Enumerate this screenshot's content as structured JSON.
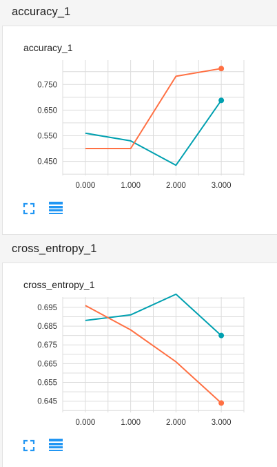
{
  "sections": [
    {
      "header_title": "accuracy_1",
      "card_title": "accuracy_1",
      "fit_icon": "fit-domain-icon",
      "data_icon": "toggle-data-table-icon"
    },
    {
      "header_title": "cross_entropy_1",
      "card_title": "cross_entropy_1",
      "fit_icon": "fit-domain-icon",
      "data_icon": "toggle-data-table-icon"
    }
  ],
  "colors": {
    "series_a": "#00a0b0",
    "series_b": "#ff7043",
    "grid": "#dcdcdc",
    "icon": "#2196f3"
  },
  "chart_data": [
    {
      "type": "line",
      "title": "accuracy_1",
      "x": [
        0,
        1,
        2,
        3
      ],
      "x_ticks": [
        "0.000",
        "1.000",
        "2.000",
        "3.000"
      ],
      "xlim": [
        -0.5,
        3.5
      ],
      "y_ticks": [
        "0.750",
        "0.650",
        "0.550",
        "0.450"
      ],
      "y_tick_values": [
        0.75,
        0.65,
        0.55,
        0.45
      ],
      "ylim": [
        0.395,
        0.845
      ],
      "grid": true,
      "series": [
        {
          "color": "#00a0b0",
          "values": [
            0.56,
            0.53,
            0.435,
            0.688
          ]
        },
        {
          "color": "#ff7043",
          "values": [
            0.5,
            0.5,
            0.782,
            0.812
          ]
        }
      ]
    },
    {
      "type": "line",
      "title": "cross_entropy_1",
      "x": [
        0,
        1,
        2,
        3
      ],
      "x_ticks": [
        "0.000",
        "1.000",
        "2.000",
        "3.000"
      ],
      "xlim": [
        -0.5,
        3.5
      ],
      "y_ticks": [
        "0.695",
        "0.685",
        "0.675",
        "0.665",
        "0.655",
        "0.645"
      ],
      "y_tick_values": [
        0.695,
        0.685,
        0.675,
        0.665,
        0.655,
        0.645
      ],
      "ylim": [
        0.639,
        0.7005
      ],
      "grid": true,
      "series": [
        {
          "color": "#00a0b0",
          "values": [
            0.688,
            0.691,
            0.702,
            0.68
          ]
        },
        {
          "color": "#ff7043",
          "values": [
            0.696,
            0.683,
            0.666,
            0.644
          ]
        }
      ]
    }
  ]
}
